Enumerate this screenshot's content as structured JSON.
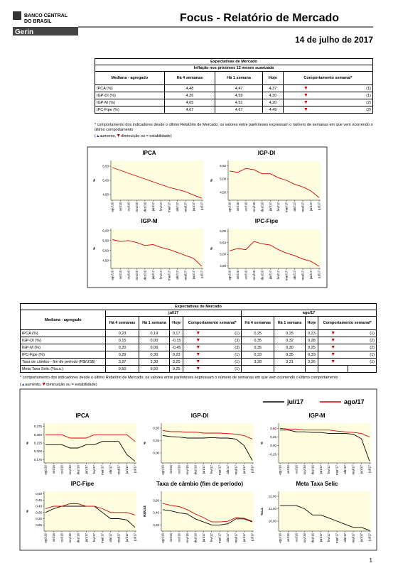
{
  "header": {
    "logo_line1": "BANCO CENTRAL",
    "logo_line2": "DO BRASIL",
    "logo_unit": "Gerin",
    "title": "Focus - Relatório de Mercado",
    "date": "14 de julho de 2017"
  },
  "table1": {
    "title": "Expectativas de Mercado",
    "subtitle": "Inflação nos próximos 12 meses suavizada",
    "columns": [
      "Mediana - agregado",
      "Há 4 semanas",
      "Há 1 semana",
      "Hoje",
      "Comportamento semanal*"
    ],
    "rows": [
      [
        "IPCA (%)",
        "4,48",
        "4,47",
        "4,37",
        "▼",
        "(1)"
      ],
      [
        "IGP-DI (%)",
        "4,36",
        "4,59",
        "4,30",
        "▼",
        "(1)"
      ],
      [
        "IGP-M (%)",
        "4,65",
        "4,51",
        "4,20",
        "▼",
        "(2)"
      ],
      [
        "IPC-Fipe (%)",
        "4,67",
        "4,67",
        "4,49",
        "▼",
        "(2)"
      ]
    ]
  },
  "footnote1": "* comportamento dos indicadores desde o último Relatório de Mercado; os valores entre parênteses expressam o número de semanas em que vem ocorrendo o último comportamento",
  "legend_note": {
    "open": "(",
    "up": "▲",
    "up_text": "aumento,",
    "down": "▼",
    "down_text": "diminuição ou = estabilidade)"
  },
  "charts_top": {
    "x_categories": [
      "ago/16",
      "set/16",
      "out/16",
      "nov/16",
      "dez/16",
      "jan/17",
      "fev/17",
      "mar/17",
      "abr/17",
      "mai/17",
      "jun/17",
      "jul/17"
    ],
    "charts": [
      {
        "type": "line",
        "title": "IPCA",
        "ylabel": "%",
        "ylim": [
          4.3,
          5.7
        ],
        "yticks": [
          {
            "value": 4.5,
            "label": "4,50"
          },
          {
            "value": 5,
            "label": "5,00"
          },
          {
            "value": 5.5,
            "label": "5,50"
          }
        ],
        "series": [
          {
            "color": "#d40000",
            "values": [
              5.45,
              5.35,
              5.25,
              5.15,
              5.05,
              4.95,
              4.85,
              4.75,
              4.68,
              4.6,
              4.48,
              4.37
            ]
          }
        ]
      },
      {
        "type": "line",
        "title": "IGP-DI",
        "ylabel": "%",
        "ylim": [
          4.2,
          5.7
        ],
        "yticks": [
          {
            "value": 4.5,
            "label": "4,50"
          },
          {
            "value": 5,
            "label": "5,00"
          },
          {
            "value": 5.5,
            "label": "5,50"
          }
        ],
        "series": [
          {
            "color": "#d40000",
            "values": [
              5.3,
              5.25,
              5.4,
              5.35,
              5.2,
              5.2,
              5.05,
              4.95,
              4.8,
              4.7,
              4.55,
              4.3
            ]
          }
        ]
      },
      {
        "type": "line",
        "title": "IGP-M",
        "ylabel": "%",
        "ylim": [
          4.1,
          6.1
        ],
        "yticks": [
          {
            "value": 4.5,
            "label": "4,50"
          },
          {
            "value": 5,
            "label": "5,00"
          },
          {
            "value": 5.5,
            "label": "5,50"
          },
          {
            "value": 6,
            "label": "6,00"
          }
        ],
        "series": [
          {
            "color": "#d40000",
            "values": [
              5.55,
              5.45,
              5.5,
              5.4,
              5.25,
              5.3,
              5.15,
              5.05,
              4.9,
              4.75,
              4.6,
              4.2
            ]
          }
        ]
      },
      {
        "type": "line",
        "title": "IPC-Fipe",
        "ylabel": "%",
        "ylim": [
          4.4,
          6.1
        ],
        "yticks": [
          {
            "value": 4.5,
            "label": "4,50"
          },
          {
            "value": 5,
            "label": "5,00"
          },
          {
            "value": 5.5,
            "label": "5,50"
          },
          {
            "value": 6,
            "label": "6,00"
          }
        ],
        "series": [
          {
            "color": "#d40000",
            "values": [
              5.15,
              5.25,
              5.2,
              5.55,
              5.45,
              5.4,
              5.2,
              5.05,
              4.95,
              4.8,
              4.7,
              4.49
            ]
          }
        ]
      }
    ]
  },
  "table2": {
    "title": "Expectativas de Mercado",
    "groups": [
      "jul/17",
      "ago/17"
    ],
    "columns": [
      "Mediana - agregado",
      "Há 4 semanas",
      "Há 1 semana",
      "Hoje",
      "Comportamento semanal*"
    ],
    "rows": [
      [
        "IPCA (%)",
        "0,23",
        "0,19",
        "0,17",
        "▼",
        "(1)",
        "0,25",
        "0,25",
        "0,23",
        "▼",
        "(1)"
      ],
      [
        "IGP-DI (%)",
        "0,15",
        "0,00",
        "-0,15",
        "▼",
        "(3)",
        "0,35",
        "0,32",
        "0,28",
        "▼",
        "(2)"
      ],
      [
        "IGP-M (%)",
        "0,20",
        "0,06",
        "-0,45",
        "▼",
        "(3)",
        "0,35",
        "0,30",
        "0,25",
        "▼",
        "(2)"
      ],
      [
        "IPC-Fipe (%)",
        "0,29",
        "0,30",
        "0,23",
        "▼",
        "(1)",
        "0,33",
        "0,35",
        "0,33",
        "▼",
        "(1)"
      ],
      [
        "Taxa de câmbio - fim de período (R$/US$)",
        "3,27",
        "3,30",
        "3,25",
        "▼",
        "(1)",
        "3,28",
        "3,31",
        "3,26",
        "▼",
        "(1)"
      ],
      [
        "Meta Taxa Selic (%a.a.)",
        "9,50",
        "9,50",
        "9,25",
        "▼",
        "(1)"
      ]
    ]
  },
  "footnote2": "* comportamento dos indicadores desde o último Relatório de Mercado; os valores entre parênteses expressam o número de semanas em que vem ocorrendo o último comportamento",
  "charts_bottom": {
    "legend": [
      {
        "name": "jul/17",
        "color": "#000000"
      },
      {
        "name": "ago/17",
        "color": "#d40000"
      }
    ],
    "x_categories": [
      "ago/16",
      "set/16",
      "out/16",
      "nov/16",
      "dez/16",
      "jan/17",
      "fev/17",
      "mar/17",
      "abr/17",
      "mai/17",
      "jun/17",
      "jul/17"
    ],
    "charts": [
      {
        "type": "line",
        "title": "IPCA",
        "ylabel": "%",
        "ylim": [
          0.165,
          0.285
        ],
        "yticks": [
          {
            "value": 0.175,
            "label": "0,175"
          },
          {
            "value": 0.2,
            "label": "0,200"
          },
          {
            "value": 0.225,
            "label": "0,225"
          },
          {
            "value": 0.25,
            "label": "0,250"
          },
          {
            "value": 0.275,
            "label": "0,275"
          }
        ],
        "series": [
          {
            "color": "#000000",
            "values": [
              0.22,
              0.22,
              0.22,
              0.21,
              0.21,
              0.22,
              0.22,
              0.23,
              0.23,
              0.23,
              0.19,
              0.17
            ]
          },
          {
            "color": "#d40000",
            "values": [
              0.25,
              0.25,
              0.25,
              0.24,
              0.24,
              0.24,
              0.25,
              0.25,
              0.25,
              0.25,
              0.25,
              0.23
            ]
          }
        ]
      },
      {
        "type": "line",
        "title": "IGP-DI",
        "ylabel": "%",
        "ylim": [
          -0.2,
          0.6
        ],
        "yticks": [
          {
            "value": 0,
            "label": "0,00"
          },
          {
            "value": 0.25,
            "label": "0,25"
          },
          {
            "value": 0.5,
            "label": "0,50"
          }
        ],
        "series": [
          {
            "color": "#000000",
            "values": [
              0.35,
              0.33,
              0.32,
              0.3,
              0.3,
              0.3,
              0.31,
              0.3,
              0.3,
              0.28,
              0.15,
              -0.15
            ]
          },
          {
            "color": "#d40000",
            "values": [
              0.45,
              0.43,
              0.43,
              0.42,
              0.42,
              0.4,
              0.4,
              0.4,
              0.39,
              0.38,
              0.35,
              0.28
            ]
          }
        ]
      },
      {
        "type": "line",
        "title": "IGP-M",
        "ylabel": "%",
        "ylim": [
          -0.5,
          0.65
        ],
        "yticks": [
          {
            "value": -0.25,
            "label": "-0,25"
          },
          {
            "value": 0,
            "label": "0,00"
          },
          {
            "value": 0.25,
            "label": "0,25"
          },
          {
            "value": 0.5,
            "label": "0,50"
          }
        ],
        "series": [
          {
            "color": "#000000",
            "values": [
              0.45,
              0.45,
              0.4,
              0.4,
              0.38,
              0.38,
              0.35,
              0.35,
              0.35,
              0.33,
              0.2,
              -0.45
            ]
          },
          {
            "color": "#d40000",
            "values": [
              0.5,
              0.48,
              0.48,
              0.45,
              0.45,
              0.45,
              0.45,
              0.42,
              0.4,
              0.38,
              0.35,
              0.25
            ]
          }
        ]
      },
      {
        "type": "line",
        "title": "IPC-Fipe",
        "ylabel": "%",
        "ylim": [
          0.2,
          0.52
        ],
        "yticks": [
          {
            "value": 0.25,
            "label": "0,25"
          },
          {
            "value": 0.3,
            "label": "0,30"
          },
          {
            "value": 0.35,
            "label": "0,35"
          },
          {
            "value": 0.4,
            "label": "0,40"
          },
          {
            "value": 0.45,
            "label": "0,45"
          },
          {
            "value": 0.5,
            "label": "0,50"
          }
        ],
        "series": [
          {
            "color": "#000000",
            "values": [
              0.35,
              0.38,
              0.4,
              0.4,
              0.4,
              0.4,
              0.4,
              0.35,
              0.3,
              0.3,
              0.29,
              0.23
            ]
          },
          {
            "color": "#d40000",
            "values": [
              0.38,
              0.4,
              0.4,
              0.42,
              0.42,
              0.4,
              0.4,
              0.38,
              0.35,
              0.35,
              0.35,
              0.33
            ]
          }
        ]
      },
      {
        "type": "line",
        "title": "Taxa de câmbio (fim de período)",
        "ylabel": "R$/US$",
        "ylim": [
          3.1,
          3.75
        ],
        "yticks": [
          {
            "value": 3.2,
            "label": "3,20"
          },
          {
            "value": 3.4,
            "label": "3,40"
          },
          {
            "value": 3.6,
            "label": "3,60"
          }
        ],
        "series": [
          {
            "color": "#000000",
            "values": [
              3.45,
              3.43,
              3.4,
              3.38,
              3.3,
              3.25,
              3.2,
              3.2,
              3.22,
              3.3,
              3.3,
              3.25
            ]
          },
          {
            "color": "#d40000",
            "values": [
              3.55,
              3.52,
              3.5,
              3.45,
              3.38,
              3.32,
              3.25,
              3.25,
              3.26,
              3.32,
              3.31,
              3.26
            ]
          }
        ]
      },
      {
        "type": "line",
        "title": "Meta Taxa Selic",
        "ylabel": "%a.a.",
        "ylim": [
          9.2,
          12.4
        ],
        "yticks": [
          {
            "value": 10,
            "label": "10,00"
          },
          {
            "value": 11,
            "label": "11,00"
          },
          {
            "value": 12,
            "label": "12,00"
          }
        ],
        "series": [
          {
            "color": "#000000",
            "values": [
              11.25,
              11.25,
              11.25,
              11,
              10.5,
              10.5,
              10.25,
              10,
              9.75,
              9.5,
              9.5,
              9.25
            ]
          }
        ]
      }
    ]
  },
  "page_number": "1"
}
